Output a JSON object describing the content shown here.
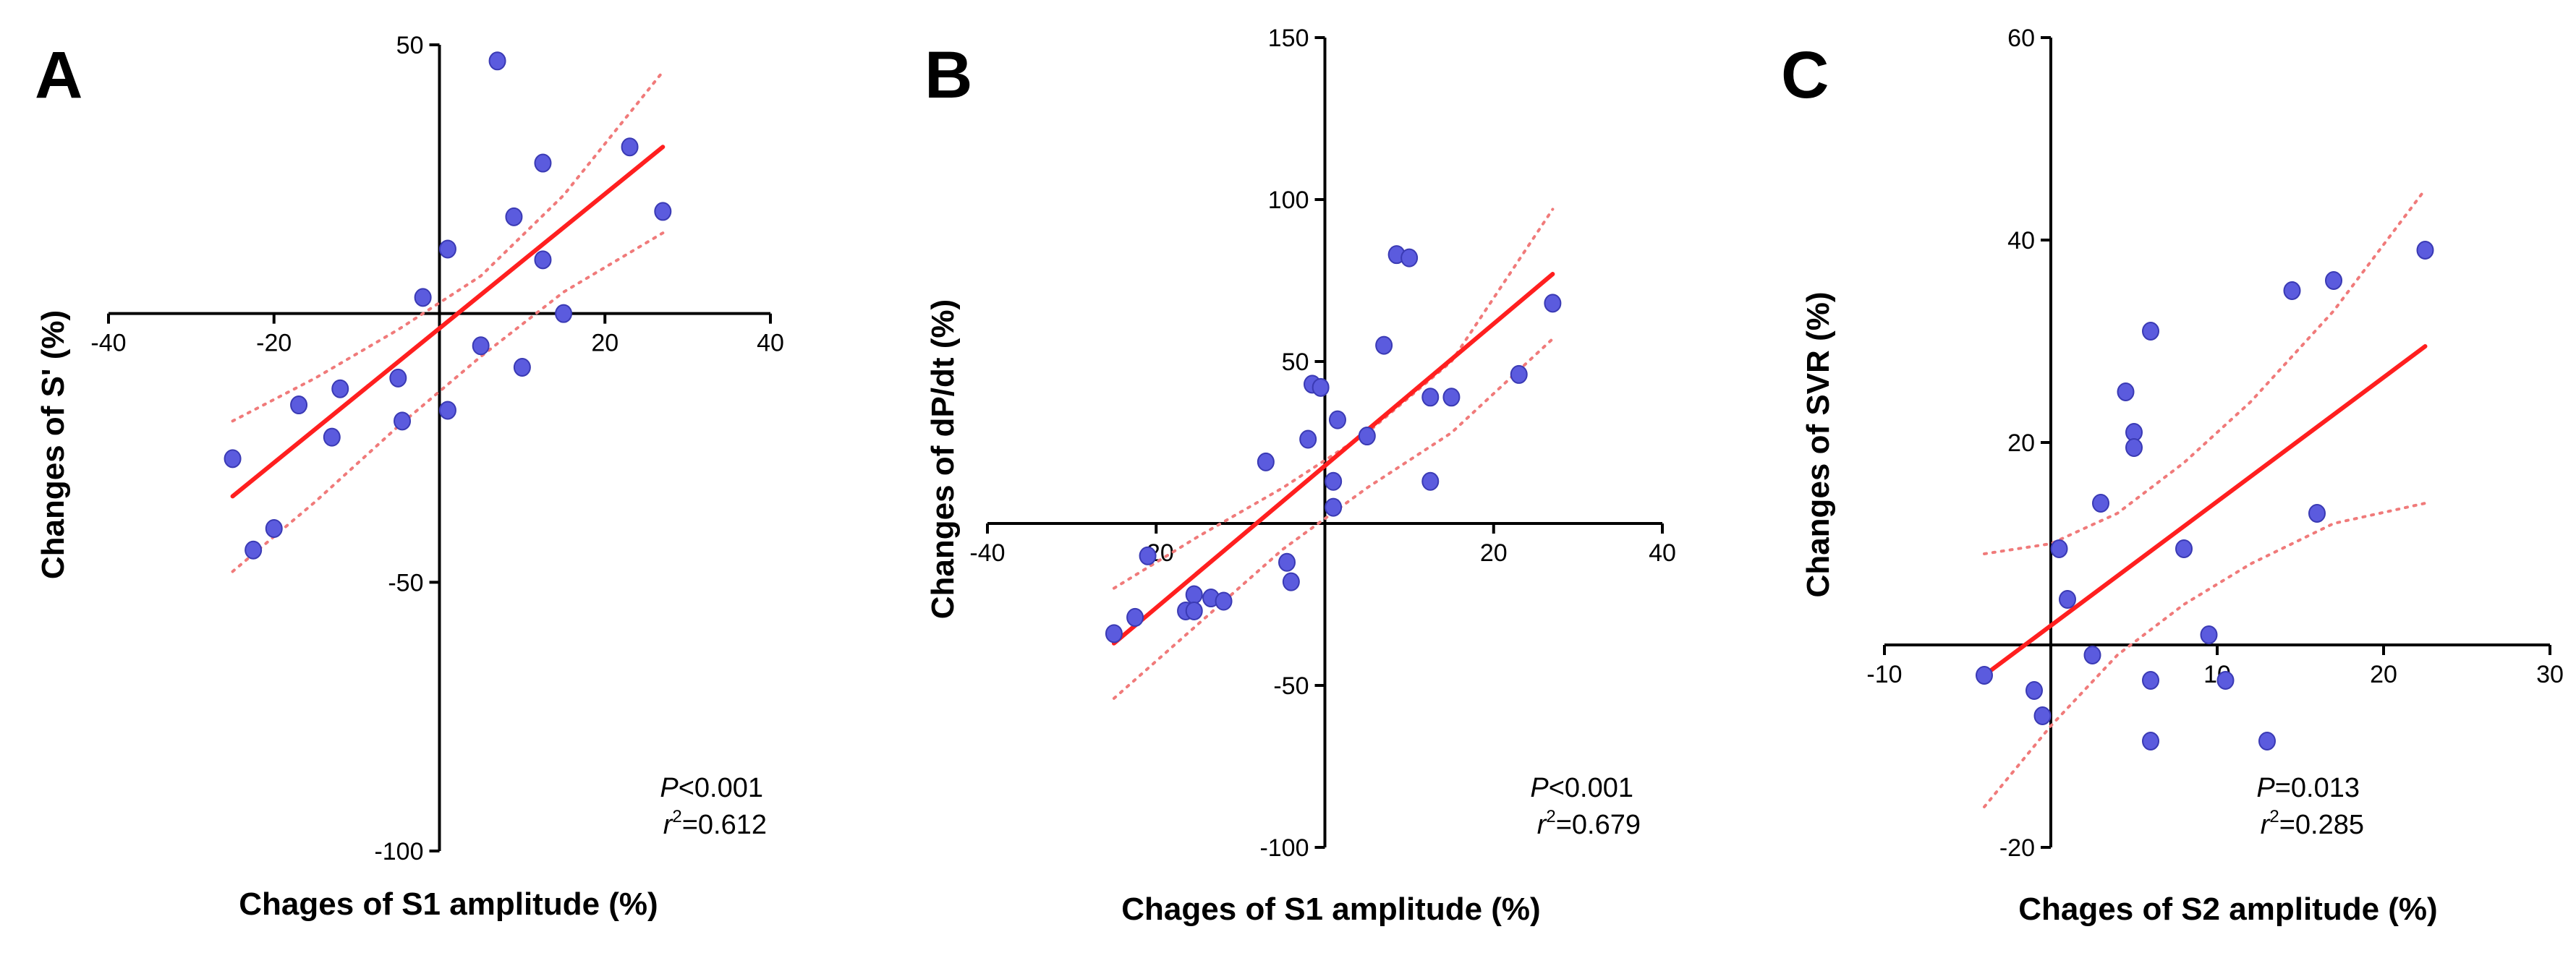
{
  "colors": {
    "point": "#5b5bde",
    "point_stroke": "#3a3ab4",
    "fit": "#ff1f1f",
    "ci": "#f07a7a",
    "axis": "#000000"
  },
  "chart_data": [
    {
      "type": "scatter",
      "panel": "A",
      "xlabel": "Chages of S1 amplitude (%)",
      "ylabel": "Changes of S' (%)",
      "xlim": [
        -40,
        40
      ],
      "ylim": [
        -100,
        50
      ],
      "xticks": [
        -40,
        -20,
        20,
        40
      ],
      "xtick_labels": [
        "-40",
        "-20",
        "20",
        "40"
      ],
      "yticks": [
        50,
        -50,
        -100
      ],
      "ytick_labels": [
        "50",
        "-50",
        "-100"
      ],
      "stat_p_prefix": "P",
      "stat_p_value": "<0.001",
      "stat_r_prefix": "r",
      "stat_r_sup": "2",
      "stat_r_value": "=0.612",
      "points": [
        {
          "x": 7,
          "y": 47
        },
        {
          "x": 12.5,
          "y": 28
        },
        {
          "x": 23,
          "y": 31
        },
        {
          "x": 27,
          "y": 19
        },
        {
          "x": 9,
          "y": 18
        },
        {
          "x": 1,
          "y": 12
        },
        {
          "x": 12.5,
          "y": 10
        },
        {
          "x": -2,
          "y": 3
        },
        {
          "x": 15,
          "y": 0
        },
        {
          "x": 5,
          "y": -6
        },
        {
          "x": 10,
          "y": -10
        },
        {
          "x": -17,
          "y": -17
        },
        {
          "x": -12,
          "y": -14
        },
        {
          "x": -5,
          "y": -12
        },
        {
          "x": 1,
          "y": -18
        },
        {
          "x": -4.5,
          "y": -20
        },
        {
          "x": -13,
          "y": -23
        },
        {
          "x": -25,
          "y": -27
        },
        {
          "x": -20,
          "y": -40
        },
        {
          "x": -22.5,
          "y": -44
        }
      ],
      "fit": {
        "x": [
          -25,
          27
        ],
        "y": [
          -34,
          31
        ]
      },
      "ci_upper": {
        "x": [
          -25,
          -15,
          -5,
          5,
          15,
          27
        ],
        "y": [
          -20,
          -12,
          -3,
          7,
          22,
          45
        ]
      },
      "ci_lower": {
        "x": [
          -25,
          -15,
          -5,
          5,
          15,
          27
        ],
        "y": [
          -48,
          -35,
          -21,
          -8,
          4,
          15
        ]
      }
    },
    {
      "type": "scatter",
      "panel": "B",
      "xlabel": "Chages of S1 amplitude (%)",
      "ylabel": "Changes of dP/dt (%)",
      "xlim": [
        -40,
        40
      ],
      "ylim": [
        -100,
        150
      ],
      "xticks": [
        -40,
        -20,
        20,
        40
      ],
      "xtick_labels": [
        "-40",
        "-20",
        "20",
        "40"
      ],
      "yticks": [
        150,
        100,
        50,
        -50,
        -100
      ],
      "ytick_labels": [
        "150",
        "100",
        "50",
        "-50",
        "-100"
      ],
      "stat_p_prefix": "P",
      "stat_p_value": "<0.001",
      "stat_r_prefix": "r",
      "stat_r_sup": "2",
      "stat_r_value": "=0.679",
      "points": [
        {
          "x": 8.5,
          "y": 83
        },
        {
          "x": 10,
          "y": 82
        },
        {
          "x": 27,
          "y": 68
        },
        {
          "x": 7,
          "y": 55
        },
        {
          "x": 23,
          "y": 46
        },
        {
          "x": -1.5,
          "y": 43
        },
        {
          "x": -0.5,
          "y": 42
        },
        {
          "x": 12.5,
          "y": 39
        },
        {
          "x": 15,
          "y": 39
        },
        {
          "x": 1.5,
          "y": 32
        },
        {
          "x": 5,
          "y": 27
        },
        {
          "x": -2,
          "y": 26
        },
        {
          "x": -7,
          "y": 19
        },
        {
          "x": 1,
          "y": 13
        },
        {
          "x": 12.5,
          "y": 13
        },
        {
          "x": 1,
          "y": 5
        },
        {
          "x": -21,
          "y": -10
        },
        {
          "x": -4.5,
          "y": -12
        },
        {
          "x": -4,
          "y": -18
        },
        {
          "x": -15.5,
          "y": -22
        },
        {
          "x": -13.5,
          "y": -23
        },
        {
          "x": -12,
          "y": -24
        },
        {
          "x": -16.5,
          "y": -27
        },
        {
          "x": -15.5,
          "y": -27
        },
        {
          "x": -22.5,
          "y": -29
        },
        {
          "x": -25,
          "y": -34
        }
      ],
      "fit": {
        "x": [
          -25,
          27
        ],
        "y": [
          -37,
          77
        ]
      },
      "ci_upper": {
        "x": [
          -25,
          -15,
          -5,
          5,
          15,
          27
        ],
        "y": [
          -20,
          -4,
          11,
          28,
          50,
          97
        ]
      },
      "ci_lower": {
        "x": [
          -25,
          -15,
          -5,
          5,
          15,
          27
        ],
        "y": [
          -54,
          -31,
          -8,
          11,
          28,
          57
        ]
      }
    },
    {
      "type": "scatter",
      "panel": "C",
      "xlabel": "Chages of S2 amplitude (%)",
      "ylabel": "Changes of SVR (%)",
      "xlim": [
        -10,
        30
      ],
      "ylim": [
        -20,
        60
      ],
      "xticks": [
        -10,
        10,
        20,
        30
      ],
      "xtick_labels": [
        "-10",
        "10",
        "20",
        "30"
      ],
      "yticks": [
        60,
        40,
        20,
        -20
      ],
      "ytick_labels": [
        "60",
        "40",
        "20",
        "-20"
      ],
      "stat_p_prefix": "P",
      "stat_p_value": "=0.013",
      "stat_r_prefix": "r",
      "stat_r_sup": "2",
      "stat_r_value": "=0.285",
      "points": [
        {
          "x": 22.5,
          "y": 39
        },
        {
          "x": 17,
          "y": 36
        },
        {
          "x": 14.5,
          "y": 35
        },
        {
          "x": 6,
          "y": 31
        },
        {
          "x": 4.5,
          "y": 25
        },
        {
          "x": 5,
          "y": 21
        },
        {
          "x": 5,
          "y": 19.5
        },
        {
          "x": 3,
          "y": 14
        },
        {
          "x": 16,
          "y": 13
        },
        {
          "x": 0.5,
          "y": 9.5
        },
        {
          "x": 8,
          "y": 9.5
        },
        {
          "x": 1,
          "y": 4.5
        },
        {
          "x": 9.5,
          "y": 1
        },
        {
          "x": 2.5,
          "y": -1
        },
        {
          "x": -4,
          "y": -3
        },
        {
          "x": 6,
          "y": -3.5
        },
        {
          "x": 10.5,
          "y": -3.5
        },
        {
          "x": -1,
          "y": -4.5
        },
        {
          "x": -0.5,
          "y": -7
        },
        {
          "x": 6,
          "y": -9.5
        },
        {
          "x": 13,
          "y": -9.5
        }
      ],
      "fit": {
        "x": [
          -4,
          22.5
        ],
        "y": [
          -3,
          29.5
        ]
      },
      "ci_upper": {
        "x": [
          -4,
          0,
          4,
          8,
          12,
          17,
          22.5
        ],
        "y": [
          9,
          10,
          13,
          18,
          24,
          33,
          45
        ]
      },
      "ci_lower": {
        "x": [
          -4,
          0,
          4,
          8,
          12,
          17,
          22.5
        ],
        "y": [
          -16,
          -8,
          -1,
          4,
          8,
          12,
          14
        ]
      }
    }
  ]
}
